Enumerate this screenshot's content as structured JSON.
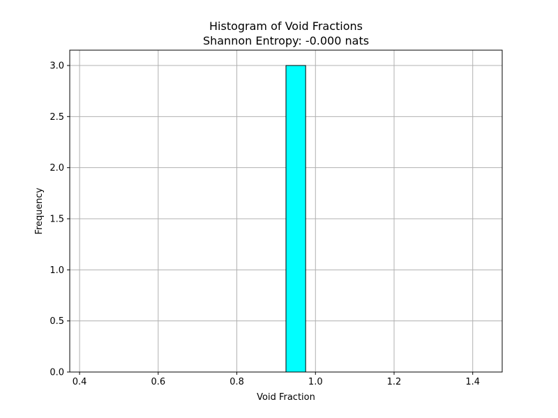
{
  "chart_data": {
    "type": "bar",
    "title": "Histogram of Void Fractions",
    "subtitle": "Shannon Entropy: -0.000 nats",
    "xlabel": "Void Fraction",
    "ylabel": "Frequency",
    "xlim": [
      0.375,
      1.475
    ],
    "ylim": [
      0,
      3.15
    ],
    "xticks": [
      0.4,
      0.6,
      0.8,
      1.0,
      1.2,
      1.4
    ],
    "xtick_labels": [
      "0.4",
      "0.6",
      "0.8",
      "1.0",
      "1.2",
      "1.4"
    ],
    "yticks": [
      0.0,
      0.5,
      1.0,
      1.5,
      2.0,
      2.5,
      3.0
    ],
    "ytick_labels": [
      "0.0",
      "0.5",
      "1.0",
      "1.5",
      "2.0",
      "2.5",
      "3.0"
    ],
    "grid": true,
    "bar_color": "#00ffff",
    "edge_color": "#000000",
    "bins": [
      {
        "x0": 0.425,
        "x1": 0.475,
        "value": 0
      },
      {
        "x0": 0.475,
        "x1": 0.525,
        "value": 0
      },
      {
        "x0": 0.525,
        "x1": 0.575,
        "value": 0
      },
      {
        "x0": 0.575,
        "x1": 0.625,
        "value": 0
      },
      {
        "x0": 0.625,
        "x1": 0.675,
        "value": 0
      },
      {
        "x0": 0.675,
        "x1": 0.725,
        "value": 0
      },
      {
        "x0": 0.725,
        "x1": 0.775,
        "value": 0
      },
      {
        "x0": 0.775,
        "x1": 0.825,
        "value": 0
      },
      {
        "x0": 0.825,
        "x1": 0.875,
        "value": 0
      },
      {
        "x0": 0.875,
        "x1": 0.925,
        "value": 0
      },
      {
        "x0": 0.925,
        "x1": 0.975,
        "value": 3
      },
      {
        "x0": 0.975,
        "x1": 1.025,
        "value": 0
      },
      {
        "x0": 1.025,
        "x1": 1.075,
        "value": 0
      },
      {
        "x0": 1.075,
        "x1": 1.125,
        "value": 0
      },
      {
        "x0": 1.125,
        "x1": 1.175,
        "value": 0
      },
      {
        "x0": 1.175,
        "x1": 1.225,
        "value": 0
      },
      {
        "x0": 1.225,
        "x1": 1.275,
        "value": 0
      },
      {
        "x0": 1.275,
        "x1": 1.325,
        "value": 0
      },
      {
        "x0": 1.325,
        "x1": 1.375,
        "value": 0
      },
      {
        "x0": 1.375,
        "x1": 1.425,
        "value": 0
      }
    ]
  }
}
